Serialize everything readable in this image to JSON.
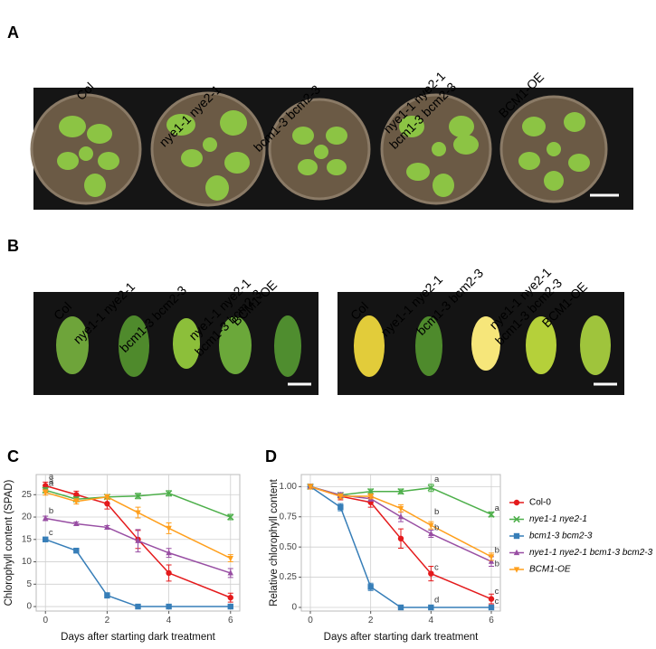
{
  "panels": {
    "A": "A",
    "B": "B",
    "C": "C",
    "D": "D"
  },
  "genotype_labels": [
    [
      "Col"
    ],
    [
      "nye1-1 nye2-1"
    ],
    [
      "bcm1-3 bcm2-3"
    ],
    [
      "nye1-1 nye2-1",
      "bcm1-3 bcm2-3"
    ],
    [
      "BCM1-OE"
    ]
  ],
  "chart_data": [
    {
      "type": "line",
      "ylabel": "Chlorophyll content (SPAD)",
      "xlabel": "Days after starting dark treatment",
      "x": [
        0,
        1,
        2,
        3,
        4,
        6
      ],
      "xlim": [
        -0.3,
        6.3
      ],
      "xticks": [
        0,
        2,
        4,
        6
      ],
      "ylim": [
        -1,
        29.5
      ],
      "yticks": [
        0,
        5,
        10,
        15,
        20,
        25
      ],
      "grid": true,
      "series": [
        {
          "color": "#e41a1c",
          "marker": "circle",
          "values": [
            27,
            25,
            23,
            15,
            7.5,
            2
          ],
          "errors": [
            0.8,
            0.8,
            1.2,
            2,
            1.8,
            1
          ]
        },
        {
          "color": "#4daf4a",
          "marker": "cross",
          "values": [
            26,
            24,
            24.5,
            24.7,
            25.3,
            20
          ],
          "errors": [
            0.6,
            0.5,
            0.5,
            0.6,
            0.6,
            0.6
          ]
        },
        {
          "color": "#377eb8",
          "marker": "square",
          "values": [
            15,
            12.5,
            2.5,
            0,
            0,
            0
          ],
          "errors": [
            0.4,
            0.5,
            0.6,
            0.2,
            0.2,
            0.2
          ]
        },
        {
          "color": "#984ea3",
          "marker": "triangle",
          "values": [
            19.7,
            18.5,
            17.7,
            14.7,
            12,
            7.5
          ],
          "errors": [
            0.5,
            0.4,
            0.4,
            2.5,
            1,
            1
          ]
        },
        {
          "color": "#ff9f1c",
          "marker": "down",
          "values": [
            25.5,
            23.5,
            24.5,
            21,
            17.5,
            10.8
          ],
          "errors": [
            0.6,
            0.6,
            0.5,
            1.2,
            1.2,
            0.8
          ]
        }
      ],
      "annotations": [
        {
          "text": "a",
          "x": 0.05,
          "y": 29
        },
        {
          "text": "a",
          "x": 0.05,
          "y": 28
        },
        {
          "text": "a",
          "x": 0.05,
          "y": 27.5
        },
        {
          "text": "b",
          "x": 0.05,
          "y": 21.3
        },
        {
          "text": "c",
          "x": 0.05,
          "y": 16.5
        }
      ]
    },
    {
      "type": "line",
      "ylabel": "Relative chlorophyll content",
      "xlabel": "Days after starting dark treatment",
      "x": [
        0,
        1,
        2,
        3,
        4,
        6
      ],
      "xlim": [
        -0.3,
        6.3
      ],
      "xticks": [
        0,
        2,
        4,
        6
      ],
      "ylim": [
        -0.03,
        1.1
      ],
      "yticks": [
        0,
        0.25,
        {
          "value": 0.5,
          "label": "0.50"
        },
        0.75,
        {
          "value": 1,
          "label": "1.00"
        }
      ],
      "grid": true,
      "series": [
        {
          "name": "Col-0",
          "color": "#e41a1c",
          "marker": "circle",
          "values": [
            1,
            0.92,
            0.87,
            0.57,
            0.28,
            0.07
          ],
          "errors": [
            0.02,
            0.03,
            0.04,
            0.08,
            0.06,
            0.04
          ]
        },
        {
          "name": "nye1-1 nye2-1",
          "color": "#4daf4a",
          "marker": "cross",
          "values": [
            1,
            0.93,
            0.96,
            0.96,
            0.99,
            0.77
          ],
          "errors": [
            0.02,
            0.02,
            0.02,
            0.02,
            0.03,
            0.02
          ]
        },
        {
          "name": "bcm1-3 bcm2-3",
          "color": "#377eb8",
          "marker": "square",
          "values": [
            1,
            0.83,
            0.17,
            0,
            0,
            0
          ],
          "errors": [
            0.02,
            0.03,
            0.03,
            0.01,
            0.01,
            0.01
          ]
        },
        {
          "name": "nye1-1 nye2-1 bcm1-3 bcm2-3",
          "color": "#984ea3",
          "marker": "triangle",
          "values": [
            1,
            0.93,
            0.9,
            0.75,
            0.61,
            0.38
          ],
          "errors": [
            0.02,
            0.02,
            0.02,
            0.04,
            0.03,
            0.04
          ]
        },
        {
          "name": "BCM1-OE",
          "color": "#ff9f1c",
          "marker": "down",
          "values": [
            1,
            0.92,
            0.92,
            0.82,
            0.68,
            0.42
          ],
          "errors": [
            0.02,
            0.02,
            0.02,
            0.03,
            0.03,
            0.03
          ]
        }
      ],
      "annotations": [
        {
          "text": "a",
          "x": 4.05,
          "y": 1.06
        },
        {
          "text": "b",
          "x": 4.05,
          "y": 0.79
        },
        {
          "text": "b",
          "x": 4.05,
          "y": 0.66
        },
        {
          "text": "c",
          "x": 4.05,
          "y": 0.33
        },
        {
          "text": "d",
          "x": 4.05,
          "y": 0.06
        },
        {
          "text": "a",
          "x": 6.05,
          "y": 0.82
        },
        {
          "text": "b",
          "x": 6.05,
          "y": 0.47
        },
        {
          "text": "b",
          "x": 6.05,
          "y": 0.36
        },
        {
          "text": "c",
          "x": 6.05,
          "y": 0.13
        },
        {
          "text": "c",
          "x": 6.05,
          "y": 0.05
        }
      ]
    }
  ]
}
